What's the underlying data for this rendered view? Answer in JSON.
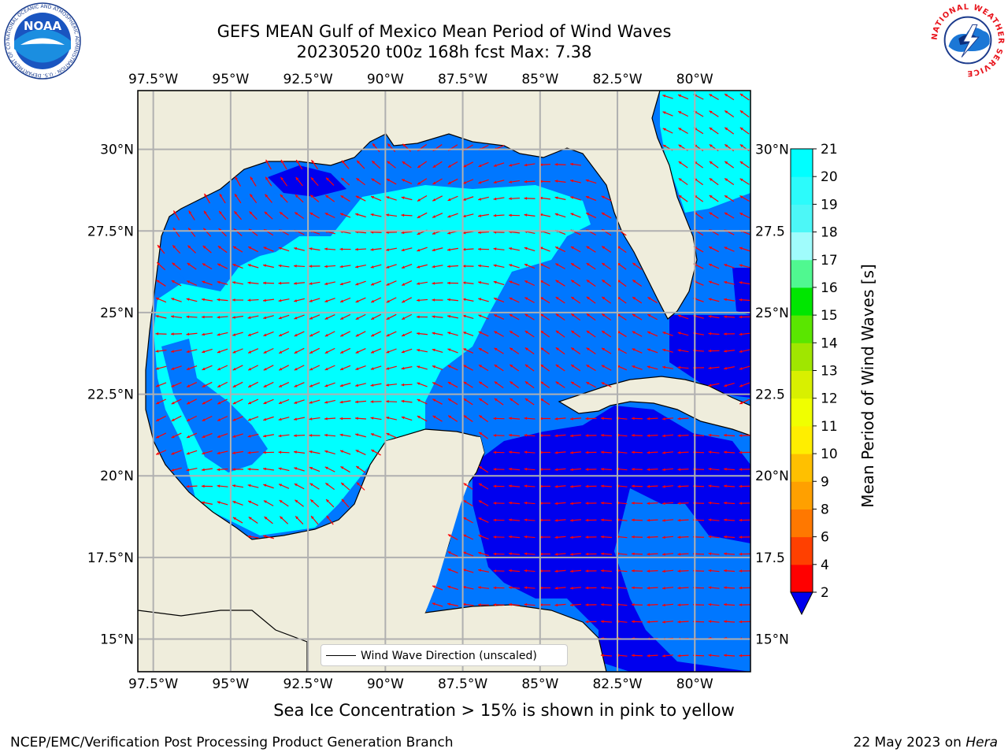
{
  "header": {
    "title_line1": "GEFS MEAN Gulf of Mexico Mean Period of Wind Waves",
    "title_line2": "20230520 t00z 168h fcst   Max: 7.38"
  },
  "logos": {
    "noaa_text": "NOAA",
    "noaa_ring": "NATIONAL OCEANIC AND ATMOSPHERIC ADMINISTRATION · U.S. DEPARTMENT OF COMMERCE",
    "nws_ring": "NATIONAL WEATHER SERVICE"
  },
  "map": {
    "lon_labels": [
      "97.5°W",
      "95°W",
      "92.5°W",
      "90°W",
      "87.5°W",
      "85°W",
      "82.5°W",
      "80°W"
    ],
    "lat_labels_left": [
      "30°N",
      "27.5°N",
      "25°N",
      "22.5°N",
      "20°N",
      "17.5°N",
      "15°N"
    ],
    "lat_labels_right": [
      "30°N",
      "27.5",
      "25°N",
      "22.5",
      "20°N",
      "17.5",
      "15°N"
    ],
    "extent": {
      "lon": [
        -98,
        -78.2
      ],
      "lat": [
        14,
        31.8
      ]
    },
    "colors": {
      "land": "#efeddc",
      "coast": "#000000",
      "grid": "#b0b0b0",
      "arrow": "#ff0000"
    },
    "legend_label": "Wind Wave Direction (unscaled)"
  },
  "colorbar": {
    "label": "Mean Period of Wind Waves [s]",
    "ticks": [
      "2",
      "4",
      "6",
      "8",
      "9",
      "10",
      "11",
      "12",
      "13",
      "14",
      "15",
      "16",
      "17",
      "18",
      "19",
      "20",
      "21"
    ],
    "colors": [
      "#0077ff",
      "#00ffff",
      "#2cfbfb",
      "#4cf7f7",
      "#a0fcfc",
      "#50f890",
      "#00e600",
      "#5ae600",
      "#a0e600",
      "#d8f000",
      "#f0ff00",
      "#ffee00",
      "#ffc000",
      "#ffa000",
      "#ff7800",
      "#ff4000",
      "#ff0000"
    ],
    "under_color": "#0000ee"
  },
  "caption": "Sea Ice Concentration > 15% is shown in pink to yellow",
  "footer": {
    "left": "NCEP/EMC/Verification Post Processing Product Generation Branch",
    "date": "22 May 2023 on ",
    "machine": "Hera"
  }
}
